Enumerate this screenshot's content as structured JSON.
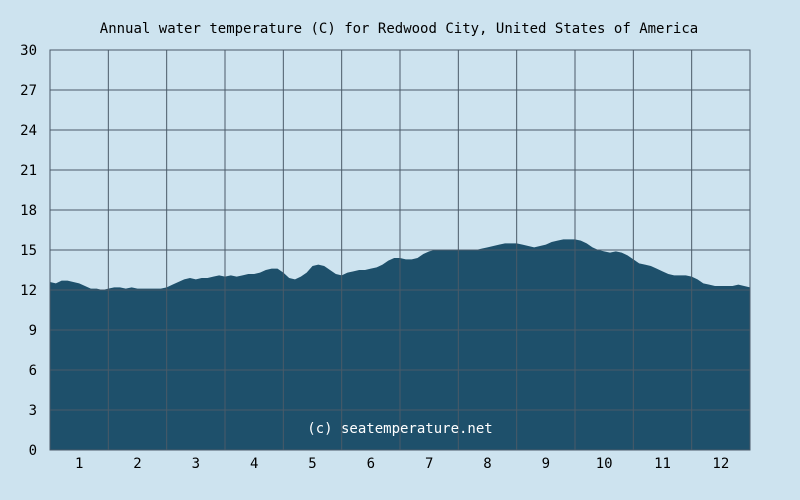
{
  "chart_data": {
    "type": "area",
    "title": "Annual water temperature (C) for Redwood City, United States of America",
    "xlabel": "",
    "ylabel": "",
    "x_tick_labels": [
      "1",
      "2",
      "3",
      "4",
      "5",
      "6",
      "7",
      "8",
      "9",
      "10",
      "11",
      "12"
    ],
    "y_tick_labels": [
      "0",
      "3",
      "6",
      "9",
      "12",
      "15",
      "18",
      "21",
      "24",
      "27",
      "30"
    ],
    "ylim": [
      0,
      30
    ],
    "xlim": [
      0.5,
      12.5
    ],
    "grid": true,
    "annotation": "(c) seatemperature.net",
    "colors": {
      "background": "#cde3ef",
      "fill": "#1e506b",
      "grid": "#4a5a68"
    },
    "series": [
      {
        "x": [
          0.5,
          0.6,
          0.7,
          0.8,
          0.9,
          1.0,
          1.1,
          1.2,
          1.3,
          1.4,
          1.5,
          1.6,
          1.7,
          1.8,
          1.9,
          2.0,
          2.1,
          2.2,
          2.3,
          2.4,
          2.5,
          2.6,
          2.7,
          2.8,
          2.9,
          3.0,
          3.1,
          3.2,
          3.3,
          3.4,
          3.5,
          3.6,
          3.7,
          3.8,
          3.9,
          4.0,
          4.1,
          4.2,
          4.3,
          4.4,
          4.5,
          4.6,
          4.7,
          4.8,
          4.9,
          5.0,
          5.1,
          5.2,
          5.3,
          5.4,
          5.5,
          5.6,
          5.7,
          5.8,
          5.9,
          6.0,
          6.1,
          6.2,
          6.3,
          6.4,
          6.5,
          6.6,
          6.7,
          6.8,
          6.9,
          7.0,
          7.1,
          7.2,
          7.3,
          7.4,
          7.5,
          7.6,
          7.7,
          7.8,
          7.9,
          8.0,
          8.1,
          8.2,
          8.3,
          8.4,
          8.5,
          8.6,
          8.7,
          8.8,
          8.9,
          9.0,
          9.1,
          9.2,
          9.3,
          9.4,
          9.5,
          9.6,
          9.7,
          9.8,
          9.9,
          10.0,
          10.1,
          10.2,
          10.3,
          10.4,
          10.5,
          10.6,
          10.7,
          10.8,
          10.9,
          11.0,
          11.1,
          11.2,
          11.3,
          11.4,
          11.5,
          11.6,
          11.7,
          11.8,
          11.9,
          12.0,
          12.1,
          12.2,
          12.3,
          12.4,
          12.5
        ],
        "values": [
          12.6,
          12.5,
          12.7,
          12.7,
          12.6,
          12.5,
          12.3,
          12.1,
          12.1,
          12.0,
          12.1,
          12.2,
          12.2,
          12.1,
          12.2,
          12.1,
          12.1,
          12.1,
          12.1,
          12.1,
          12.2,
          12.4,
          12.6,
          12.8,
          12.9,
          12.8,
          12.9,
          12.9,
          13.0,
          13.1,
          13.0,
          13.1,
          13.0,
          13.1,
          13.2,
          13.2,
          13.3,
          13.5,
          13.6,
          13.6,
          13.3,
          12.9,
          12.8,
          13.0,
          13.3,
          13.8,
          13.9,
          13.8,
          13.5,
          13.2,
          13.1,
          13.3,
          13.4,
          13.5,
          13.5,
          13.6,
          13.7,
          13.9,
          14.2,
          14.4,
          14.4,
          14.3,
          14.3,
          14.4,
          14.7,
          14.9,
          15.0,
          15.0,
          15.0,
          15.0,
          15.0,
          15.0,
          15.0,
          15.0,
          15.1,
          15.2,
          15.3,
          15.4,
          15.5,
          15.5,
          15.5,
          15.4,
          15.3,
          15.2,
          15.3,
          15.4,
          15.6,
          15.7,
          15.8,
          15.8,
          15.8,
          15.7,
          15.5,
          15.2,
          15.0,
          14.9,
          14.8,
          14.9,
          14.8,
          14.6,
          14.3,
          14.0,
          13.9,
          13.8,
          13.6,
          13.4,
          13.2,
          13.1,
          13.1,
          13.1,
          13.0,
          12.8,
          12.5,
          12.4,
          12.3,
          12.3,
          12.3,
          12.3,
          12.4,
          12.3,
          12.2
        ]
      }
    ]
  }
}
